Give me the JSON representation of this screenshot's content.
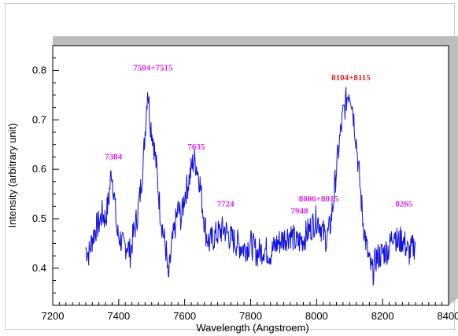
{
  "chart_data": {
    "type": "line",
    "title": "",
    "xlabel": "Wavelength (Angstroem)",
    "ylabel": "Intensity (arbitrary unit)",
    "xlim": [
      7200,
      8400
    ],
    "ylim": [
      0.325,
      0.85
    ],
    "x_ticks": [
      7200,
      7400,
      7600,
      7800,
      8000,
      8200,
      8400
    ],
    "y_ticks": [
      0.4,
      0.5,
      0.6,
      0.7,
      0.8
    ],
    "y_tick_labels": [
      "0.4",
      "0.5",
      "0.6",
      "0.7",
      "0.8"
    ],
    "grid": false,
    "legend": "none",
    "line_color": "#1010e0",
    "series": [
      {
        "x": [
          7300,
          7310,
          7320,
          7330,
          7340,
          7350,
          7360,
          7370,
          7378,
          7385,
          7395,
          7405,
          7415,
          7425,
          7435,
          7445,
          7455,
          7465,
          7475,
          7482,
          7488,
          7495,
          7505,
          7515,
          7525,
          7535,
          7545,
          7550,
          7560,
          7570,
          7580,
          7590,
          7600,
          7610,
          7620,
          7628,
          7635,
          7645,
          7655,
          7665,
          7675,
          7685,
          7700,
          7720,
          7740,
          7760,
          7780,
          7800,
          7820,
          7840,
          7860,
          7880,
          7900,
          7920,
          7940,
          7960,
          7980,
          8000,
          8010,
          8020,
          8030,
          8040,
          8050,
          8060,
          8070,
          8080,
          8090,
          8098,
          8104,
          8110,
          8120,
          8130,
          8140,
          8150,
          8160,
          8170,
          8180,
          8200,
          8220,
          8235,
          8245,
          8260,
          8280,
          8300
        ],
        "values": [
          0.44,
          0.43,
          0.46,
          0.48,
          0.49,
          0.51,
          0.5,
          0.54,
          0.6,
          0.56,
          0.47,
          0.46,
          0.44,
          0.45,
          0.43,
          0.47,
          0.5,
          0.55,
          0.62,
          0.7,
          0.77,
          0.7,
          0.66,
          0.6,
          0.52,
          0.47,
          0.43,
          0.37,
          0.44,
          0.48,
          0.52,
          0.5,
          0.55,
          0.57,
          0.6,
          0.62,
          0.61,
          0.58,
          0.52,
          0.47,
          0.45,
          0.46,
          0.47,
          0.48,
          0.46,
          0.45,
          0.44,
          0.45,
          0.43,
          0.44,
          0.43,
          0.45,
          0.46,
          0.47,
          0.45,
          0.46,
          0.48,
          0.5,
          0.49,
          0.47,
          0.46,
          0.48,
          0.53,
          0.6,
          0.66,
          0.71,
          0.74,
          0.76,
          0.75,
          0.72,
          0.66,
          0.58,
          0.5,
          0.45,
          0.41,
          0.39,
          0.42,
          0.43,
          0.44,
          0.48,
          0.45,
          0.46,
          0.43,
          0.45
        ]
      }
    ],
    "annotations": [
      {
        "text": "7384",
        "x": 7384,
        "y": 0.62,
        "color": "#e020e0"
      },
      {
        "text": "7504+7515",
        "x": 7504,
        "y": 0.8,
        "color": "#e020e0"
      },
      {
        "text": "7635",
        "x": 7635,
        "y": 0.64,
        "color": "#e020e0"
      },
      {
        "text": "7724",
        "x": 7724,
        "y": 0.525,
        "color": "#e020e0"
      },
      {
        "text": "7948",
        "x": 7948,
        "y": 0.51,
        "color": "#e020e0"
      },
      {
        "text": "8006+8015",
        "x": 8006,
        "y": 0.535,
        "color": "#e020e0"
      },
      {
        "text": "8104+8115",
        "x": 8104,
        "y": 0.78,
        "color": "#e02020"
      },
      {
        "text": "8265",
        "x": 8265,
        "y": 0.525,
        "color": "#e020e0"
      }
    ]
  }
}
